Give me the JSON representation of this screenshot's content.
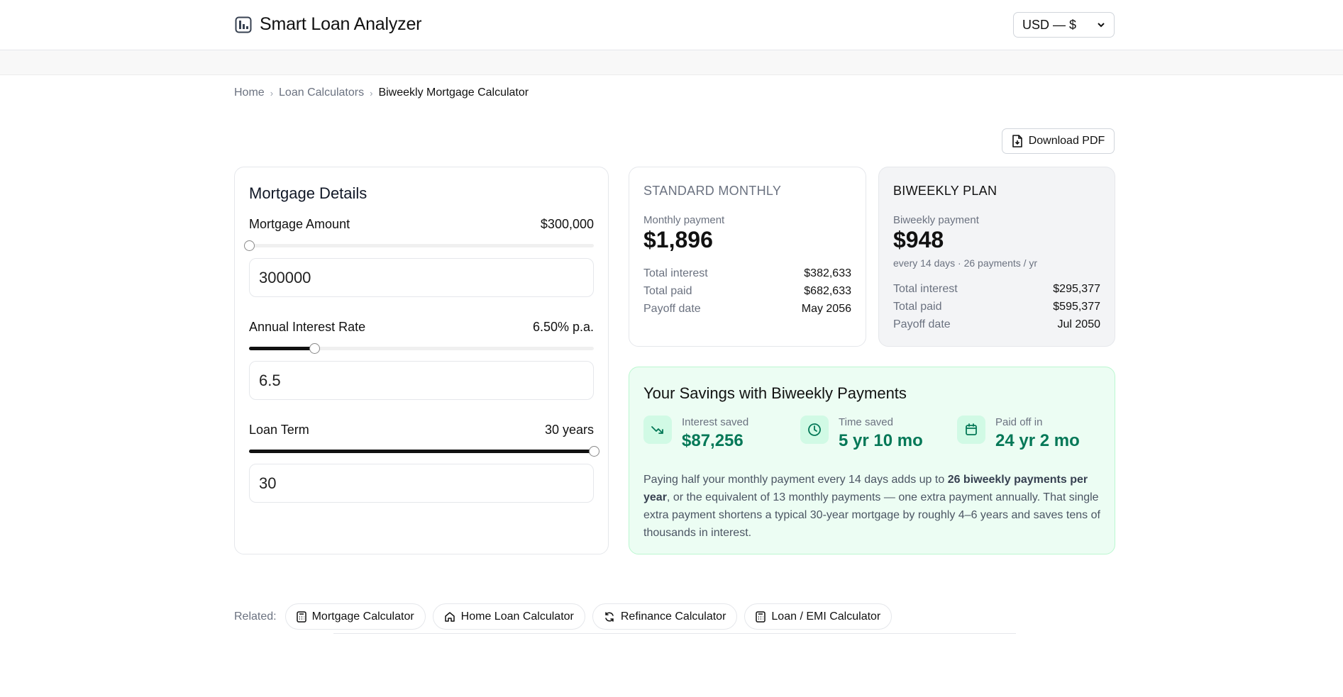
{
  "header": {
    "title": "Smart Loan Analyzer",
    "logo_icon": "bar-chart-icon",
    "currency": "USD — $"
  },
  "breadcrumb": {
    "items": [
      "Home",
      "Loan Calculators",
      "Biweekly Mortgage Calculator"
    ]
  },
  "toolbar": {
    "download_label": "Download PDF"
  },
  "details": {
    "title": "Mortgage Details",
    "amount": {
      "label": "Mortgage Amount",
      "display": "$300,000",
      "input": "300000",
      "slider_fraction": 0.0
    },
    "rate": {
      "label": "Annual Interest Rate",
      "display": "6.50% p.a.",
      "input": "6.5",
      "slider_fraction": 0.19
    },
    "term": {
      "label": "Loan Term",
      "display": "30 years",
      "input": "30",
      "slider_fraction": 1.0
    }
  },
  "standard": {
    "title": "STANDARD MONTHLY",
    "payment_label": "Monthly payment",
    "payment_value": "$1,896",
    "total_interest_label": "Total interest",
    "total_interest": "$382,633",
    "total_paid_label": "Total paid",
    "total_paid": "$682,633",
    "payoff_label": "Payoff date",
    "payoff": "May 2056"
  },
  "biweekly": {
    "title": "BIWEEKLY PLAN",
    "payment_label": "Biweekly payment",
    "payment_value": "$948",
    "note": "every 14 days · 26 payments / yr",
    "total_interest_label": "Total interest",
    "total_interest": "$295,377",
    "total_paid_label": "Total paid",
    "total_paid": "$595,377",
    "payoff_label": "Payoff date",
    "payoff": "Jul 2050"
  },
  "savings": {
    "title": "Your Savings with Biweekly Payments",
    "interest_label": "Interest saved",
    "interest_value": "$87,256",
    "time_label": "Time saved",
    "time_value": "5 yr 10 mo",
    "paid_label": "Paid off in",
    "paid_value": "24 yr 2 mo",
    "text_before": "Paying half your monthly payment every 14 days adds up to ",
    "text_bold": "26 biweekly payments per year",
    "text_after": ", or the equivalent of 13 monthly payments — one extra payment annually. That single extra payment shortens a typical 30-year mortgage by roughly 4–6 years and saves tens of thousands in interest."
  },
  "related": {
    "label": "Related:",
    "links": [
      "Mortgage Calculator",
      "Home Loan Calculator",
      "Refinance Calculator",
      "Loan / EMI Calculator"
    ]
  },
  "colors": {
    "accent_green": "#047857",
    "savings_bg": "#ecfdf3",
    "slider_fill": "#111111"
  }
}
